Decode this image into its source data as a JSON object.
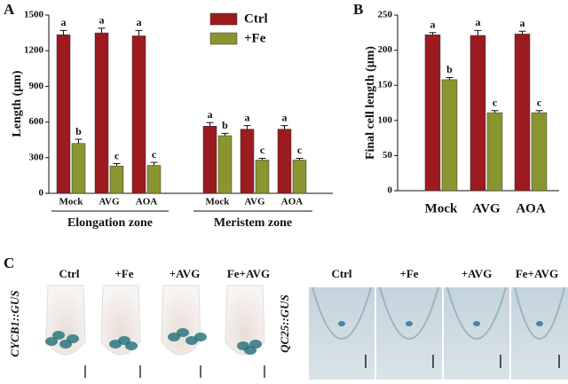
{
  "chart_data": [
    {
      "type": "bar",
      "panel_label": "A",
      "y_label": "Length (μm)",
      "categories": [
        "Mock",
        "AVG",
        "AOA",
        "Mock",
        "AVG",
        "AOA"
      ],
      "groups": [
        "Elongation zone",
        "Meristem zone"
      ],
      "series": [
        {
          "name": "Ctrl",
          "color": "#9b1b1e",
          "values": [
            1335,
            1350,
            1325,
            565,
            540,
            540
          ],
          "errors": [
            35,
            40,
            45,
            30,
            30,
            30
          ],
          "letters": [
            "a",
            "a",
            "a",
            "a",
            "a",
            "a"
          ]
        },
        {
          "name": "+Fe",
          "color": "#8a9530",
          "values": [
            420,
            230,
            235,
            485,
            280,
            280
          ],
          "errors": [
            35,
            20,
            25,
            20,
            15,
            15
          ],
          "letters": [
            "b",
            "c",
            "c",
            "b",
            "c",
            "c"
          ]
        }
      ],
      "ylim": [
        0,
        1500
      ],
      "yticks": [
        0,
        300,
        600,
        900,
        1200,
        1500
      ],
      "legend": "upper center"
    },
    {
      "type": "bar",
      "panel_label": "B",
      "y_label": "Final cell length (μm)",
      "categories": [
        "Mock",
        "AVG",
        "AOA"
      ],
      "series": [
        {
          "name": "Ctrl",
          "color": "#9b1b1e",
          "values": [
            222,
            221,
            223
          ],
          "errors": [
            3,
            7,
            4
          ],
          "letters": [
            "a",
            "a",
            "a"
          ]
        },
        {
          "name": "+Fe",
          "color": "#8a9530",
          "values": [
            158,
            111,
            111
          ],
          "errors": [
            3,
            3,
            3
          ],
          "letters": [
            "b",
            "c",
            "c"
          ]
        }
      ],
      "ylim": [
        0,
        250
      ],
      "yticks": [
        0,
        50,
        100,
        150,
        200,
        250
      ]
    }
  ],
  "panel_c": {
    "label": "C",
    "left": {
      "marker": "CYCB1::GUS",
      "columns": [
        "Ctrl",
        "+Fe",
        "+AVG",
        "Fe+AVG"
      ]
    },
    "right": {
      "marker": "QC25::GUS",
      "columns": [
        "Ctrl",
        "+Fe",
        "+AVG",
        "Fe+AVG"
      ]
    }
  }
}
